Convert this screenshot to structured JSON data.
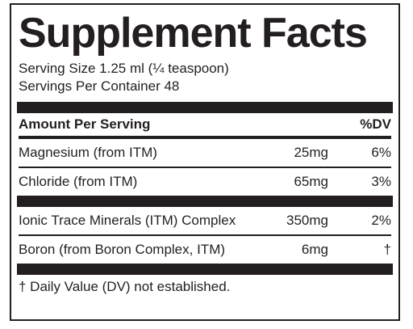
{
  "label": {
    "title": "Supplement Facts",
    "serving_size": "Serving Size 1.25 ml (¼ teaspoon)",
    "servings_per_container": "Servings Per Container 48"
  },
  "table": {
    "header": {
      "amount_label": "Amount Per Serving",
      "dv_label": "%DV"
    },
    "groups": [
      [
        {
          "name": "Magnesium (from ITM)",
          "amount": "25mg",
          "dv": "6%"
        },
        {
          "name": "Chloride (from ITM)",
          "amount": "65mg",
          "dv": "3%"
        }
      ],
      [
        {
          "name": "Ionic Trace Minerals (ITM) Complex",
          "amount": "350mg",
          "dv": "2%"
        },
        {
          "name": "Boron (from Boron Complex, ITM)",
          "amount": "6mg",
          "dv": "†"
        }
      ]
    ]
  },
  "footnote": "† Daily Value (DV) not established.",
  "colors": {
    "ink": "#231f20",
    "background": "#ffffff"
  }
}
